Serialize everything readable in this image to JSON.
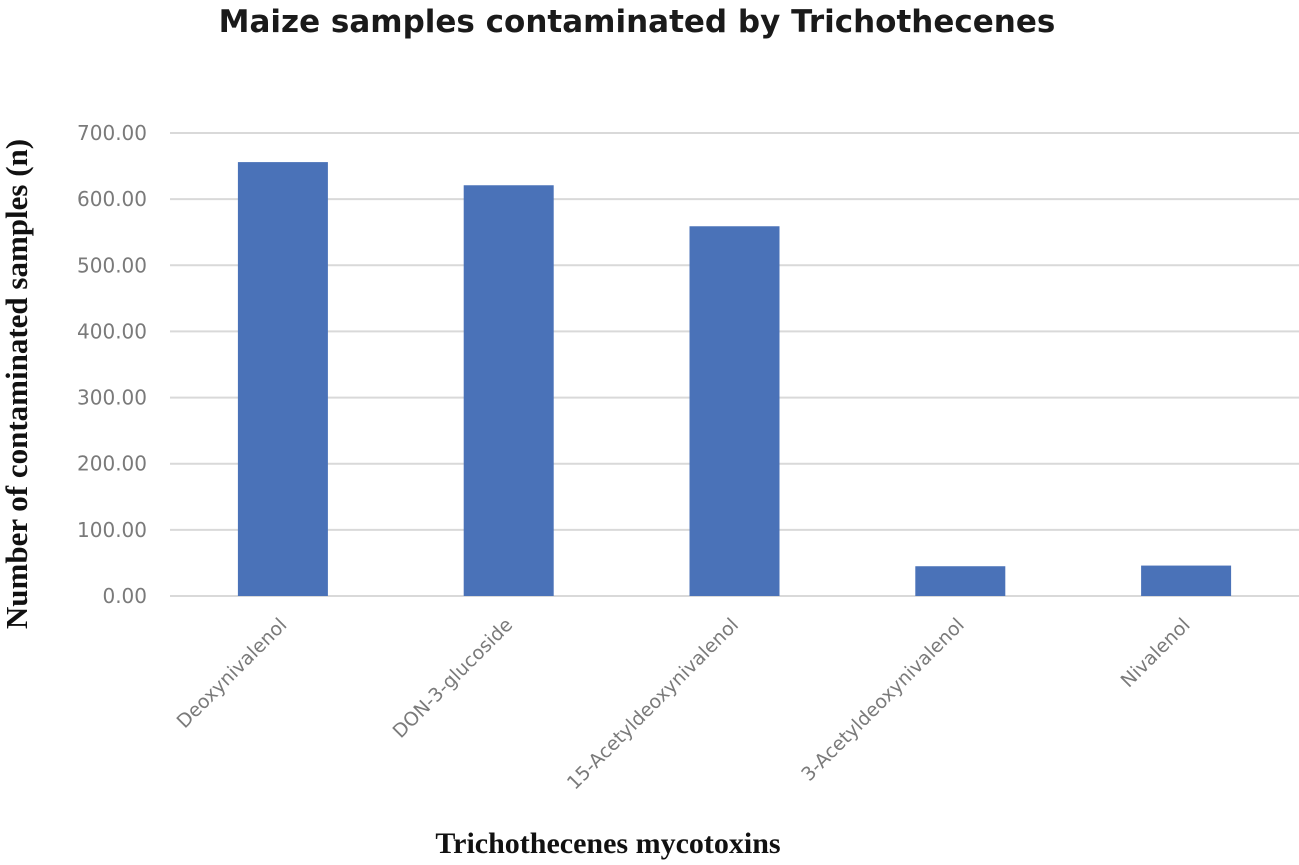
{
  "chart_data": {
    "type": "bar",
    "title": "Maize samples contaminated by Trichothecenes",
    "xlabel": "Trichothecenes mycotoxins",
    "ylabel": "Number of contaminated samples  (n)",
    "categories": [
      "Deoxynivalenol",
      "DON-3-glucoside",
      "15-Acetyldeoxynivalenol",
      "3-Acetyldeoxynivalenol",
      "Nivalenol"
    ],
    "values": [
      656,
      621,
      559,
      45,
      46
    ],
    "ylim": [
      0,
      700
    ],
    "yticks": [
      "0.00",
      "100.00",
      "200.00",
      "300.00",
      "400.00",
      "500.00",
      "600.00",
      "700.00"
    ],
    "grid": true,
    "legend": "none",
    "colors": {
      "bar": "#4a72b8"
    }
  }
}
